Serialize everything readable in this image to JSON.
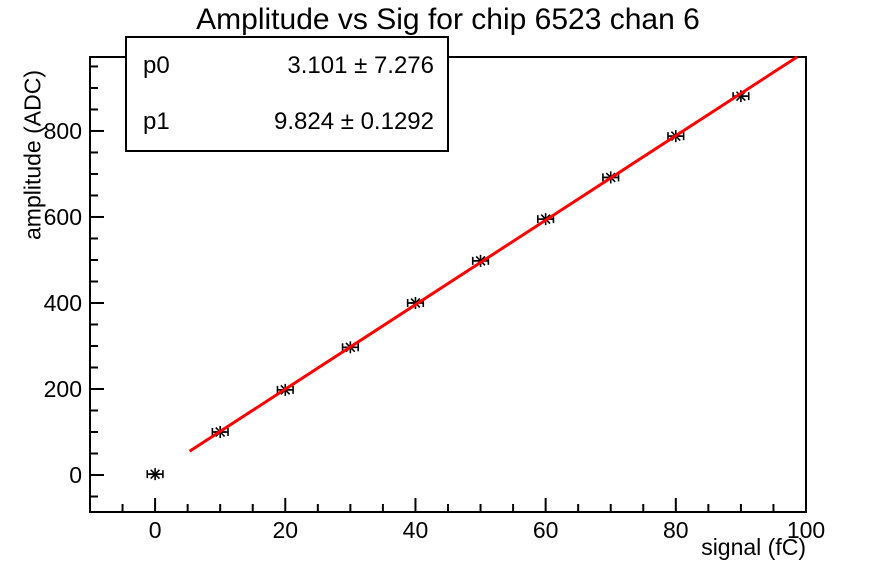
{
  "title": "Amplitude vs Sig for chip 6523 chan 6",
  "stats_box": {
    "rows": [
      {
        "label": "p0",
        "value": "3.101 ± 7.276"
      },
      {
        "label": "p1",
        "value": "9.824 ± 0.1292"
      }
    ]
  },
  "chart_data": {
    "type": "scatter",
    "title": "Amplitude vs Sig for chip 6523 chan 6",
    "xlabel": "signal (fC)",
    "ylabel": "amplitude (ADC)",
    "x": [
      0,
      10,
      20,
      30,
      40,
      50,
      60,
      70,
      80,
      90
    ],
    "y": [
      2,
      100,
      198,
      297,
      400,
      498,
      595,
      692,
      788,
      881
    ],
    "x_error": 1.2,
    "xlim": [
      -10,
      100
    ],
    "ylim": [
      -86,
      972
    ],
    "x_major_ticks": [
      0,
      20,
      40,
      60,
      80,
      100
    ],
    "x_minor_step": 5,
    "y_major_ticks": [
      0,
      200,
      400,
      600,
      800
    ],
    "y_minor_step": 50,
    "grid": false,
    "marker_style": "asterisk",
    "marker_color": "#000000",
    "axis_color": "#000000",
    "background_color": "#ffffff",
    "fit": {
      "type": "linear",
      "p0": 3.101,
      "p0_error": 7.276,
      "p1": 9.824,
      "p1_error": 0.1292,
      "x_start": 5.3,
      "x_end": 98.63,
      "color": "#ff0000"
    }
  }
}
